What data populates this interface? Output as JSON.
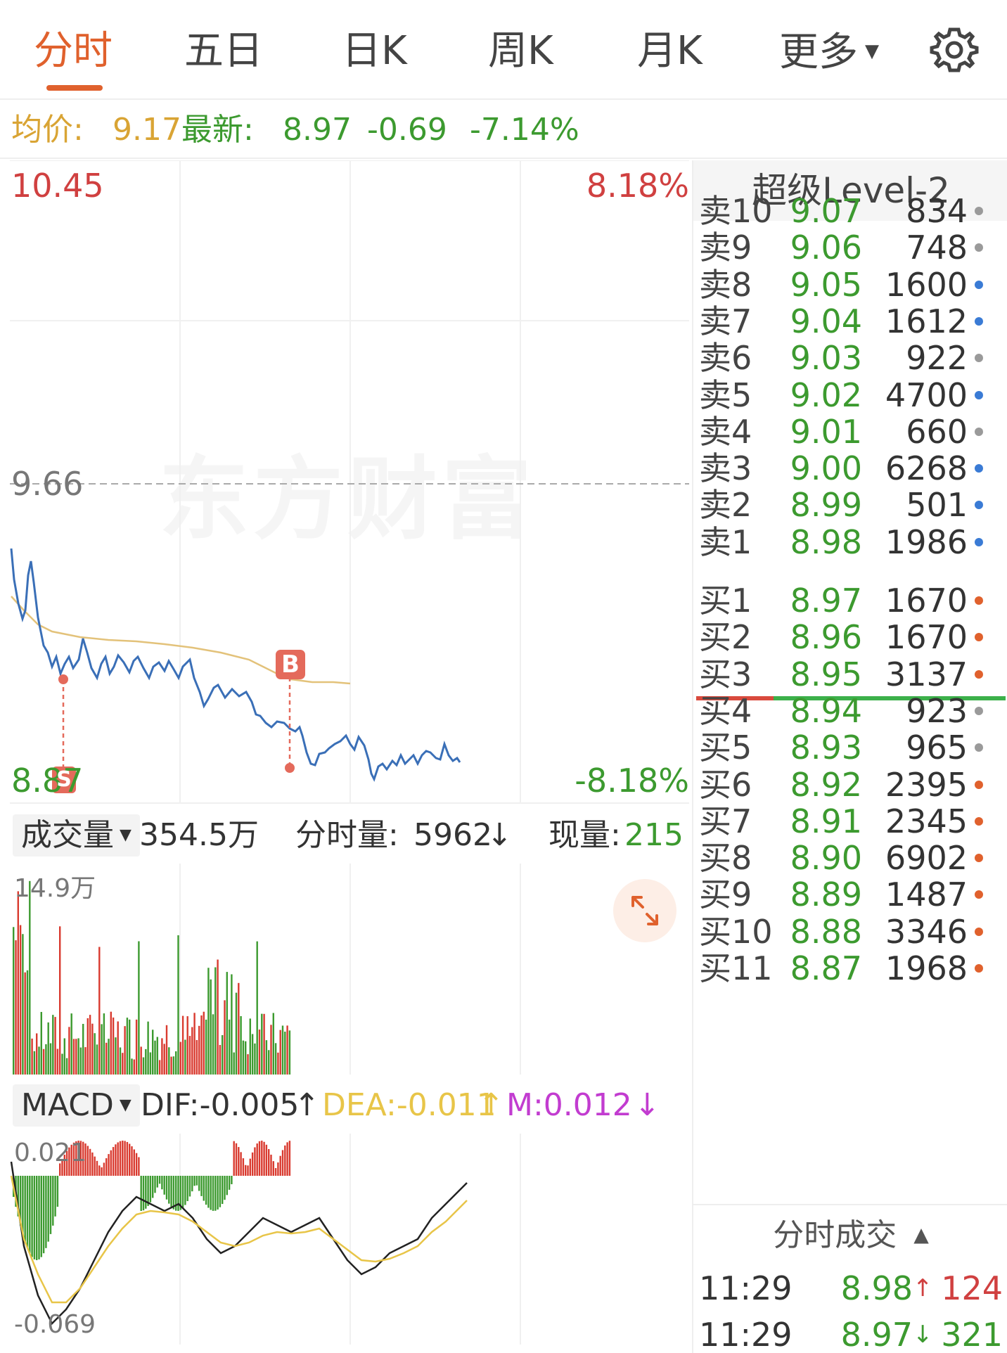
{
  "tabs": [
    {
      "label": "分时",
      "active": true
    },
    {
      "label": "五日"
    },
    {
      "label": "日K"
    },
    {
      "label": "周K"
    },
    {
      "label": "月K"
    },
    {
      "label": "更多"
    }
  ],
  "info": {
    "avg_label": "均价:",
    "avg_value": "9.17",
    "latest_label": "最新:",
    "latest_value": "8.97",
    "change": "-0.69",
    "change_pct": "-7.14%"
  },
  "price_chart": {
    "max_price": "10.45",
    "max_pct": "8.18%",
    "prev_close": "9.66",
    "min_price": "8.87",
    "min_pct": "-8.18%",
    "marker_b": "B",
    "marker_s": "S",
    "watermark": "东方财富"
  },
  "volume": {
    "selector": "成交量",
    "total": "354.5万",
    "minute_label": "分时量:",
    "minute_value": "5962",
    "minute_arrow": "↓",
    "current_label": "现量:",
    "current_value": "215",
    "max_label": "14.9万"
  },
  "macd": {
    "selector": "MACD",
    "dif": "DIF:-0.005",
    "dif_arrow": "↑",
    "dea": "DEA:-0.011",
    "dea_arrow": "↑",
    "m": "M:0.012",
    "m_arrow": "↓",
    "max_label": "0.021",
    "min_label": "-0.069"
  },
  "order_book": {
    "title": "超级Level-2",
    "asks": [
      {
        "label": "卖10",
        "price": "9.07",
        "vol": "834",
        "dot": "gray"
      },
      {
        "label": "卖9",
        "price": "9.06",
        "vol": "748",
        "dot": "gray"
      },
      {
        "label": "卖8",
        "price": "9.05",
        "vol": "1600",
        "dot": "blue"
      },
      {
        "label": "卖7",
        "price": "9.04",
        "vol": "1612",
        "dot": "blue"
      },
      {
        "label": "卖6",
        "price": "9.03",
        "vol": "922",
        "dot": "gray"
      },
      {
        "label": "卖5",
        "price": "9.02",
        "vol": "4700",
        "dot": "blue"
      },
      {
        "label": "卖4",
        "price": "9.01",
        "vol": "660",
        "dot": "gray"
      },
      {
        "label": "卖3",
        "price": "9.00",
        "vol": "6268",
        "dot": "blue"
      },
      {
        "label": "卖2",
        "price": "8.99",
        "vol": "501",
        "dot": "blue"
      },
      {
        "label": "卖1",
        "price": "8.98",
        "vol": "1986",
        "dot": "blue"
      }
    ],
    "bids": [
      {
        "label": "买1",
        "price": "8.97",
        "vol": "1670",
        "dot": "orange"
      },
      {
        "label": "买2",
        "price": "8.96",
        "vol": "1670",
        "dot": "orange"
      },
      {
        "label": "买3",
        "price": "8.95",
        "vol": "3137",
        "dot": "orange"
      },
      {
        "label": "买4",
        "price": "8.94",
        "vol": "923",
        "dot": "gray"
      },
      {
        "label": "买5",
        "price": "8.93",
        "vol": "965",
        "dot": "gray"
      },
      {
        "label": "买6",
        "price": "8.92",
        "vol": "2395",
        "dot": "orange"
      },
      {
        "label": "买7",
        "price": "8.91",
        "vol": "2345",
        "dot": "orange"
      },
      {
        "label": "买8",
        "price": "8.90",
        "vol": "6902",
        "dot": "orange"
      },
      {
        "label": "买9",
        "price": "8.89",
        "vol": "1487",
        "dot": "orange"
      },
      {
        "label": "买10",
        "price": "8.88",
        "vol": "3346",
        "dot": "orange"
      },
      {
        "label": "买11",
        "price": "8.87",
        "vol": "1968",
        "dot": "orange"
      }
    ],
    "trades_header": "分时成交",
    "trades": [
      {
        "time": "11:29",
        "price": "8.98",
        "arrow": "↑",
        "vol": "124",
        "dir": "up"
      },
      {
        "time": "11:29",
        "price": "8.97",
        "arrow": "↓",
        "vol": "321",
        "dir": "down"
      }
    ]
  },
  "colors": {
    "accent": "#e0612d",
    "up_red": "#d04040",
    "down_green": "#3c9a2f",
    "avg_gold": "#d9a434",
    "price_line": "#3a6fb7",
    "dot_gray": "#9a9a9a",
    "dot_blue": "#3a7bd5",
    "dot_orange": "#e0612d"
  }
}
